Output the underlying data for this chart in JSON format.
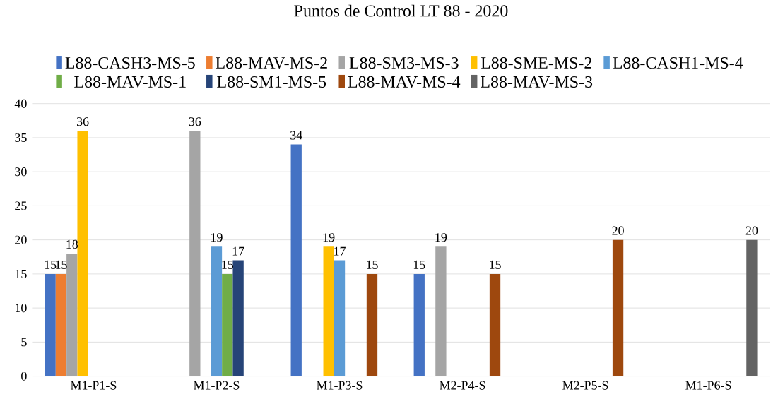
{
  "chart_data": {
    "type": "bar",
    "title": "Puntos de Control LT 88 - 2020",
    "categories": [
      "M1-P1-S",
      "M1-P2-S",
      "M1-P3-S",
      "M2-P4-S",
      "M2-P5-S",
      "M1-P6-S"
    ],
    "series": [
      {
        "name": "L88-CASH3-MS-5",
        "color": "#4472c4",
        "values": [
          15,
          null,
          34,
          15,
          null,
          null
        ]
      },
      {
        "name": "L88-MAV-MS-2",
        "color": "#ed7d31",
        "values": [
          15,
          null,
          null,
          null,
          null,
          null
        ]
      },
      {
        "name": "L88-SM3-MS-3",
        "color": "#a5a5a5",
        "values": [
          18,
          36,
          null,
          19,
          null,
          null
        ]
      },
      {
        "name": "L88-SME-MS-2",
        "color": "#ffc000",
        "values": [
          36,
          null,
          19,
          null,
          null,
          null
        ]
      },
      {
        "name": "L88-CASH1-MS-4",
        "color": "#5b9bd5",
        "values": [
          null,
          19,
          17,
          null,
          null,
          null
        ]
      },
      {
        "name": "L88-MAV-MS-1",
        "color": "#70ad47",
        "values": [
          null,
          15,
          null,
          null,
          null,
          null
        ]
      },
      {
        "name": "L88-SM1-MS-5",
        "color": "#264478",
        "values": [
          null,
          17,
          null,
          null,
          null,
          null
        ]
      },
      {
        "name": "L88-MAV-MS-4",
        "color": "#9e480e",
        "values": [
          null,
          null,
          15,
          15,
          20,
          null
        ]
      },
      {
        "name": "L88-MAV-MS-3",
        "color": "#636363",
        "values": [
          null,
          null,
          null,
          null,
          null,
          20
        ]
      }
    ],
    "ylim": [
      0,
      40
    ],
    "yticks": [
      0,
      5,
      10,
      15,
      20,
      25,
      30,
      35,
      40
    ],
    "grid": "y",
    "legend": "top",
    "data_labels": true
  }
}
